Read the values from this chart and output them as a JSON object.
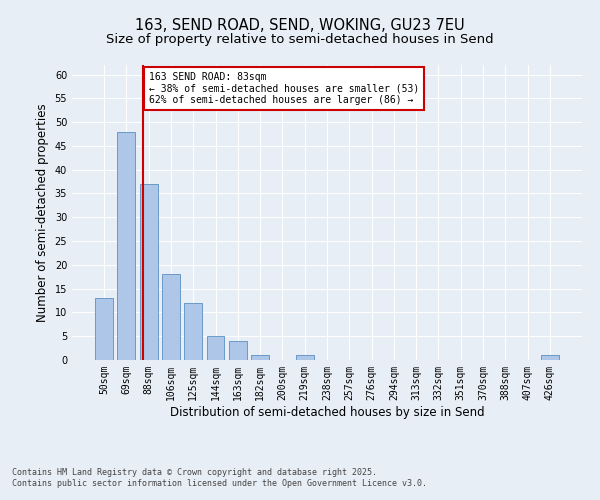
{
  "title1": "163, SEND ROAD, SEND, WOKING, GU23 7EU",
  "title2": "Size of property relative to semi-detached houses in Send",
  "xlabel": "Distribution of semi-detached houses by size in Send",
  "ylabel": "Number of semi-detached properties",
  "bins": [
    "50sqm",
    "69sqm",
    "88sqm",
    "106sqm",
    "125sqm",
    "144sqm",
    "163sqm",
    "182sqm",
    "200sqm",
    "219sqm",
    "238sqm",
    "257sqm",
    "276sqm",
    "294sqm",
    "313sqm",
    "332sqm",
    "351sqm",
    "370sqm",
    "388sqm",
    "407sqm",
    "426sqm"
  ],
  "values": [
    13,
    48,
    37,
    18,
    12,
    5,
    4,
    1,
    0,
    1,
    0,
    0,
    0,
    0,
    0,
    0,
    0,
    0,
    0,
    0,
    1
  ],
  "bar_color": "#aec6e8",
  "bar_edge_color": "#5a8fc2",
  "vline_color": "#cc0000",
  "vline_x": 1.73,
  "annotation_title": "163 SEND ROAD: 83sqm",
  "annotation_line1": "← 38% of semi-detached houses are smaller (53)",
  "annotation_line2": "62% of semi-detached houses are larger (86) →",
  "annotation_box_color": "#ffffff",
  "annotation_box_edge": "#cc0000",
  "ylim": [
    0,
    62
  ],
  "yticks": [
    0,
    5,
    10,
    15,
    20,
    25,
    30,
    35,
    40,
    45,
    50,
    55,
    60
  ],
  "footer_line1": "Contains HM Land Registry data © Crown copyright and database right 2025.",
  "footer_line2": "Contains public sector information licensed under the Open Government Licence v3.0.",
  "bg_color": "#e8eef5",
  "plot_bg_color": "#e8eef5",
  "title_fontsize": 10.5,
  "subtitle_fontsize": 9.5,
  "tick_fontsize": 7,
  "label_fontsize": 8.5,
  "annotation_fontsize": 7,
  "footer_fontsize": 6
}
